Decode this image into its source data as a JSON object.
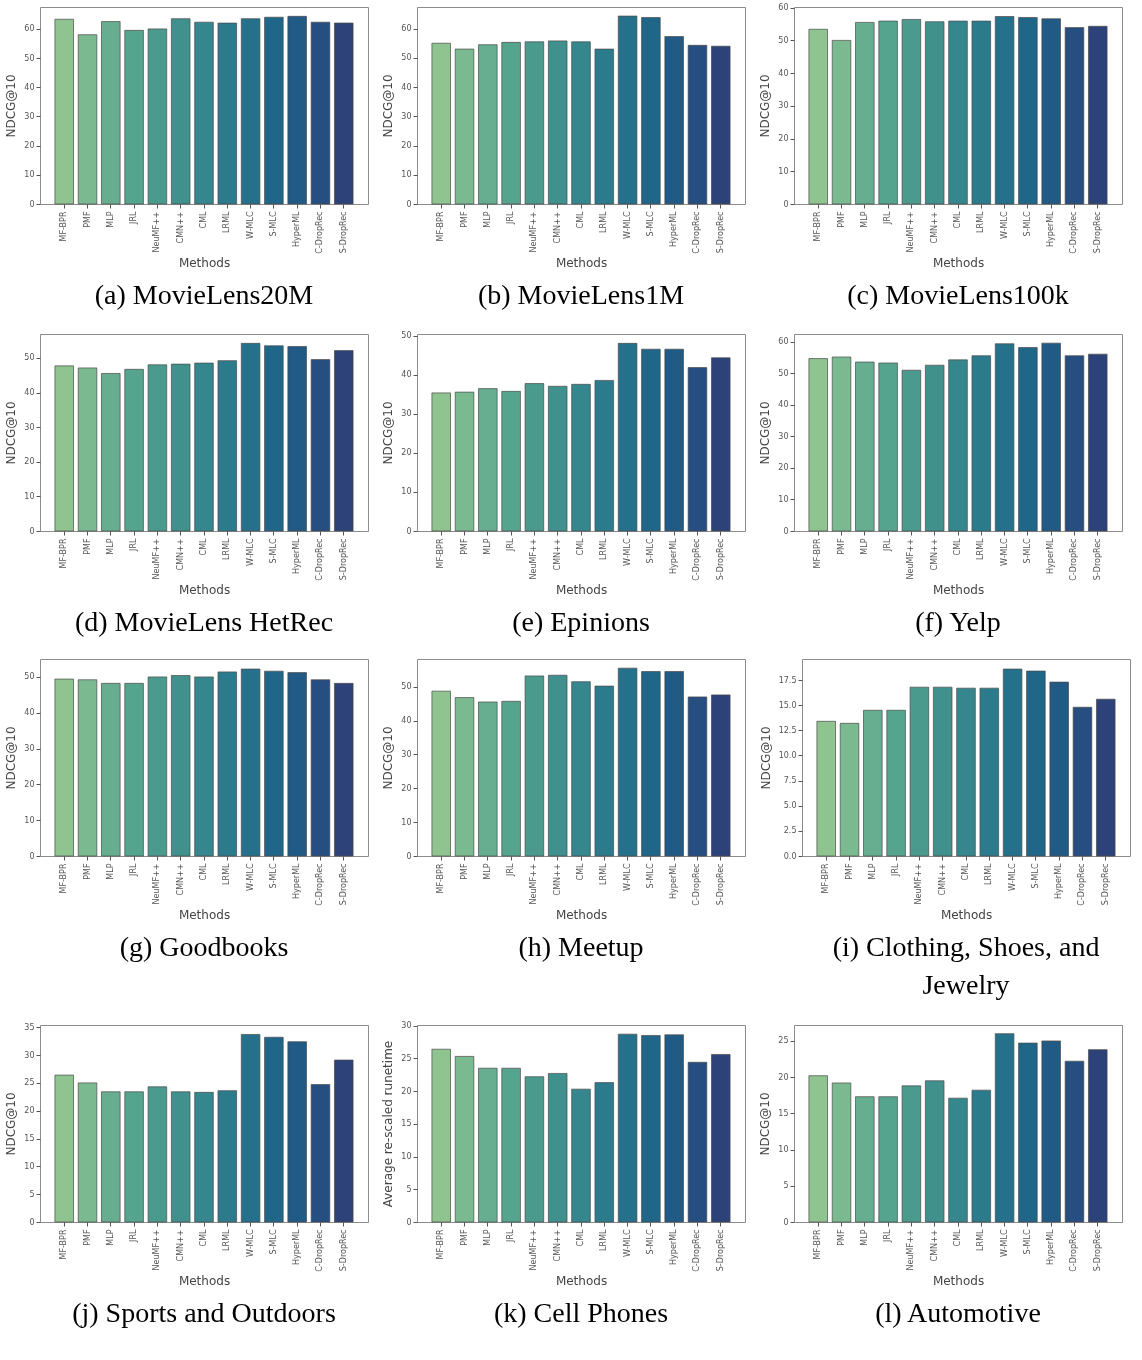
{
  "chart_data": [
    {
      "type": "bar",
      "title": "(a) MovieLens20M",
      "xlabel": "Methods",
      "ylabel": "NDCG@10",
      "categories": [
        "MF-BPR",
        "PMF",
        "MLP",
        "JRL",
        "NeuMF++",
        "CMN++",
        "CML",
        "LRML",
        "W-MLC",
        "S-MLC",
        "HyperML",
        "C-DropRec",
        "S-DropRec"
      ],
      "values": [
        63.3,
        58.0,
        62.5,
        59.5,
        60.0,
        63.5,
        62.3,
        62.0,
        63.5,
        64.0,
        64.3,
        62.3,
        62.0
      ],
      "colors": [
        "#8fc38f",
        "#7bba90",
        "#66ae8f",
        "#55a48e",
        "#4a9a8e",
        "#40908e",
        "#35868d",
        "#2c7b8c",
        "#25718b",
        "#206689",
        "#225a86",
        "#274e80",
        "#2c4278"
      ],
      "ylim": [
        0,
        67.5
      ],
      "yticks": [
        0,
        10,
        20,
        30,
        40,
        50,
        60
      ]
    },
    {
      "type": "bar",
      "title": "(b) MovieLens1M",
      "xlabel": "Methods",
      "ylabel": "NDCG@10",
      "categories": [
        "MF-BPR",
        "PMF",
        "MLP",
        "JRL",
        "NeuMF++",
        "CMN++",
        "CML",
        "LRML",
        "W-MLC",
        "S-MLC",
        "HyperML",
        "C-DropRec",
        "S-DropRec"
      ],
      "values": [
        55.0,
        53.0,
        54.5,
        55.3,
        55.5,
        55.8,
        55.5,
        53.0,
        64.3,
        63.8,
        57.3,
        54.3,
        54.0
      ],
      "colors": [
        "#8fc38f",
        "#7bba90",
        "#66ae8f",
        "#55a48e",
        "#4a9a8e",
        "#40908e",
        "#35868d",
        "#2c7b8c",
        "#25718b",
        "#206689",
        "#225a86",
        "#274e80",
        "#2c4278"
      ],
      "ylim": [
        0,
        67.4
      ],
      "yticks": [
        0,
        10,
        20,
        30,
        40,
        50,
        60
      ]
    },
    {
      "type": "bar",
      "title": "(c) MovieLens100k",
      "xlabel": "Methods",
      "ylabel": "NDCG@10",
      "categories": [
        "MF-BPR",
        "PMF",
        "MLP",
        "JRL",
        "NeuMF++",
        "CMN++",
        "CML",
        "LRML",
        "W-MLC",
        "S-MLC",
        "HyperML",
        "C-DropRec",
        "S-DropRec"
      ],
      "values": [
        53.4,
        50.0,
        55.5,
        55.9,
        56.4,
        55.7,
        55.9,
        55.9,
        57.3,
        57.0,
        56.6,
        53.9,
        54.3
      ],
      "colors": [
        "#8fc38f",
        "#7bba90",
        "#66ae8f",
        "#55a48e",
        "#4a9a8e",
        "#40908e",
        "#35868d",
        "#2c7b8c",
        "#25718b",
        "#206689",
        "#225a86",
        "#274e80",
        "#2c4278"
      ],
      "ylim": [
        0,
        60.2
      ],
      "yticks": [
        0,
        10,
        20,
        30,
        40,
        50,
        60
      ]
    },
    {
      "type": "bar",
      "title": "(d) MovieLens HetRec",
      "xlabel": "Methods",
      "ylabel": "NDCG@10",
      "categories": [
        "MF-BPR",
        "PMF",
        "MLP",
        "JRL",
        "NeuMF++",
        "CMN++",
        "CML",
        "LRML",
        "W-MLC",
        "S-MLC",
        "HyperML",
        "C-DropRec",
        "S-DropRec"
      ],
      "values": [
        47.7,
        47.1,
        45.5,
        46.7,
        48.0,
        48.2,
        48.5,
        49.2,
        54.2,
        53.5,
        53.3,
        49.5,
        52.1
      ],
      "colors": [
        "#8fc38f",
        "#7bba90",
        "#66ae8f",
        "#55a48e",
        "#4a9a8e",
        "#40908e",
        "#35868d",
        "#2c7b8c",
        "#25718b",
        "#206689",
        "#225a86",
        "#274e80",
        "#2c4278"
      ],
      "ylim": [
        0,
        56.9
      ],
      "yticks": [
        0,
        10,
        20,
        30,
        40,
        50
      ]
    },
    {
      "type": "bar",
      "title": "(e) Epinions",
      "xlabel": "Methods",
      "ylabel": "NDCG@10",
      "categories": [
        "MF-BPR",
        "PMF",
        "MLP",
        "JRL",
        "NeuMF++",
        "CMN++",
        "CML",
        "LRML",
        "W-MLC",
        "S-MLC",
        "HyperML",
        "C-DropRec",
        "S-DropRec"
      ],
      "values": [
        35.4,
        35.6,
        36.5,
        35.8,
        37.8,
        37.1,
        37.6,
        38.6,
        48.1,
        46.6,
        46.6,
        41.9,
        44.4
      ],
      "colors": [
        "#8fc38f",
        "#7bba90",
        "#66ae8f",
        "#55a48e",
        "#4a9a8e",
        "#40908e",
        "#35868d",
        "#2c7b8c",
        "#25718b",
        "#206689",
        "#225a86",
        "#274e80",
        "#2c4278"
      ],
      "ylim": [
        0,
        50.5
      ],
      "yticks": [
        0,
        10,
        20,
        30,
        40,
        50
      ]
    },
    {
      "type": "bar",
      "title": "(f) Yelp",
      "xlabel": "Methods",
      "ylabel": "NDCG@10",
      "categories": [
        "MF-BPR",
        "PMF",
        "MLP",
        "JRL",
        "NeuMF++",
        "CMN++",
        "CML",
        "LRML",
        "W-MLC",
        "S-MLC",
        "HyperML",
        "C-DropRec",
        "S-DropRec"
      ],
      "values": [
        54.7,
        55.2,
        53.6,
        53.3,
        51.0,
        52.6,
        54.3,
        55.6,
        59.4,
        58.2,
        59.6,
        55.6,
        56.1
      ],
      "colors": [
        "#8fc38f",
        "#7bba90",
        "#66ae8f",
        "#55a48e",
        "#4a9a8e",
        "#40908e",
        "#35868d",
        "#2c7b8c",
        "#25718b",
        "#206689",
        "#225a86",
        "#274e80",
        "#2c4278"
      ],
      "ylim": [
        0,
        62.5
      ],
      "yticks": [
        0,
        10,
        20,
        30,
        40,
        50,
        60
      ]
    },
    {
      "type": "bar",
      "title": "(g) Goodbooks",
      "xlabel": "Methods",
      "ylabel": "NDCG@10",
      "categories": [
        "MF-BPR",
        "PMF",
        "MLP",
        "JRL",
        "NeuMF++",
        "CMN++",
        "CML",
        "LRML",
        "W-MLC",
        "S-MLC",
        "HyperML",
        "C-DropRec",
        "S-DropRec"
      ],
      "values": [
        49.4,
        49.2,
        48.2,
        48.2,
        50.0,
        50.4,
        50.0,
        51.4,
        52.2,
        51.6,
        51.2,
        49.2,
        48.2
      ],
      "colors": [
        "#8fc38f",
        "#7bba90",
        "#66ae8f",
        "#55a48e",
        "#4a9a8e",
        "#40908e",
        "#35868d",
        "#2c7b8c",
        "#25718b",
        "#206689",
        "#225a86",
        "#274e80",
        "#2c4278"
      ],
      "ylim": [
        0,
        55.0
      ],
      "yticks": [
        0,
        10,
        20,
        30,
        40,
        50
      ]
    },
    {
      "type": "bar",
      "title": "(h) Meetup",
      "xlabel": "Methods",
      "ylabel": "NDCG@10",
      "categories": [
        "MF-BPR",
        "PMF",
        "MLP",
        "JRL",
        "NeuMF++",
        "CMN++",
        "CML",
        "LRML",
        "W-MLC",
        "S-MLC",
        "HyperML",
        "C-DropRec",
        "S-DropRec"
      ],
      "values": [
        48.7,
        46.8,
        45.5,
        45.7,
        53.2,
        53.4,
        51.5,
        50.2,
        55.5,
        54.5,
        54.5,
        47.0,
        47.6
      ],
      "colors": [
        "#8fc38f",
        "#7bba90",
        "#66ae8f",
        "#55a48e",
        "#4a9a8e",
        "#40908e",
        "#35868d",
        "#2c7b8c",
        "#25718b",
        "#206689",
        "#225a86",
        "#274e80",
        "#2c4278"
      ],
      "ylim": [
        0,
        58.2
      ],
      "yticks": [
        0,
        10,
        20,
        30,
        40,
        50
      ]
    },
    {
      "type": "bar",
      "title": "(i) Clothing, Shoes, and Jewelry",
      "xlabel": "Methods",
      "ylabel": "NDCG@10",
      "categories": [
        "MF-BPR",
        "PMF",
        "MLP",
        "JRL",
        "NeuMF++",
        "CMN++",
        "CML",
        "LRML",
        "W-MLC",
        "S-MLC",
        "HyperML",
        "C-DropRec",
        "S-DropRec"
      ],
      "values": [
        13.4,
        13.2,
        14.5,
        14.5,
        16.8,
        16.8,
        16.7,
        16.7,
        18.6,
        18.4,
        17.3,
        14.8,
        15.6
      ],
      "colors": [
        "#8fc38f",
        "#7bba90",
        "#66ae8f",
        "#55a48e",
        "#4a9a8e",
        "#40908e",
        "#35868d",
        "#2c7b8c",
        "#25718b",
        "#206689",
        "#225a86",
        "#274e80",
        "#2c4278"
      ],
      "ylim": [
        0,
        19.6
      ],
      "yticks": [
        {
          "value": 0,
          "label": "0.0"
        },
        2.5,
        {
          "value": 5,
          "label": "5.0"
        },
        7.5,
        {
          "value": 10,
          "label": "10.0"
        },
        12.5,
        {
          "value": 15,
          "label": "15.0"
        },
        17.5
      ]
    },
    {
      "type": "bar",
      "title": "(j) Sports and Outdoors",
      "xlabel": "Methods",
      "ylabel": "NDCG@10",
      "categories": [
        "MF-BPR",
        "PMF",
        "MLP",
        "JRL",
        "NeuMF++",
        "CMN++",
        "CML",
        "LRML",
        "W-MLC",
        "S-MLC",
        "HyperML",
        "C-DropRec",
        "S-DropRec"
      ],
      "values": [
        26.4,
        25.0,
        23.4,
        23.4,
        24.3,
        23.4,
        23.3,
        23.6,
        33.7,
        33.2,
        32.4,
        24.7,
        29.1
      ],
      "colors": [
        "#8fc38f",
        "#7bba90",
        "#66ae8f",
        "#55a48e",
        "#4a9a8e",
        "#40908e",
        "#35868d",
        "#2c7b8c",
        "#25718b",
        "#206689",
        "#225a86",
        "#274e80",
        "#2c4278"
      ],
      "ylim": [
        0,
        35.4
      ],
      "yticks": [
        0,
        5,
        10,
        15,
        20,
        25,
        30,
        35
      ]
    },
    {
      "type": "bar",
      "title": "(k) Cell Phones",
      "xlabel": "Methods",
      "ylabel": "Average re-scaled runetime",
      "categories": [
        "MF-BPR",
        "PMF",
        "MLP",
        "JRL",
        "NeuMF++",
        "CMN++",
        "CML",
        "LRML",
        "W-MLC",
        "S-MLC",
        "HyperML",
        "C-DropRec",
        "S-DropRec"
      ],
      "values": [
        26.4,
        25.3,
        23.5,
        23.5,
        22.2,
        22.7,
        20.3,
        21.3,
        28.7,
        28.5,
        28.6,
        24.4,
        25.6
      ],
      "colors": [
        "#8fc38f",
        "#7bba90",
        "#66ae8f",
        "#55a48e",
        "#4a9a8e",
        "#40908e",
        "#35868d",
        "#2c7b8c",
        "#25718b",
        "#206689",
        "#225a86",
        "#274e80",
        "#2c4278"
      ],
      "ylim": [
        0,
        30.1
      ],
      "yticks": [
        0,
        5,
        10,
        15,
        20,
        25,
        30
      ]
    },
    {
      "type": "bar",
      "title": "(l) Automotive",
      "xlabel": "Methods",
      "ylabel": "NDCG@10",
      "categories": [
        "MF-BPR",
        "PMF",
        "MLP",
        "JRL",
        "NeuMF++",
        "CMN++",
        "CML",
        "LRML",
        "W-MLC",
        "S-MLC",
        "HyperML",
        "C-DropRec",
        "S-DropRec"
      ],
      "values": [
        20.2,
        19.2,
        17.3,
        17.3,
        18.8,
        19.5,
        17.1,
        18.2,
        26.0,
        24.7,
        25.0,
        22.2,
        23.8
      ],
      "colors": [
        "#8fc38f",
        "#7bba90",
        "#66ae8f",
        "#55a48e",
        "#4a9a8e",
        "#40908e",
        "#35868d",
        "#2c7b8c",
        "#25718b",
        "#206689",
        "#225a86",
        "#274e80",
        "#2c4278"
      ],
      "ylim": [
        0,
        27.2
      ],
      "yticks": [
        0,
        5,
        10,
        15,
        20,
        25
      ]
    }
  ]
}
